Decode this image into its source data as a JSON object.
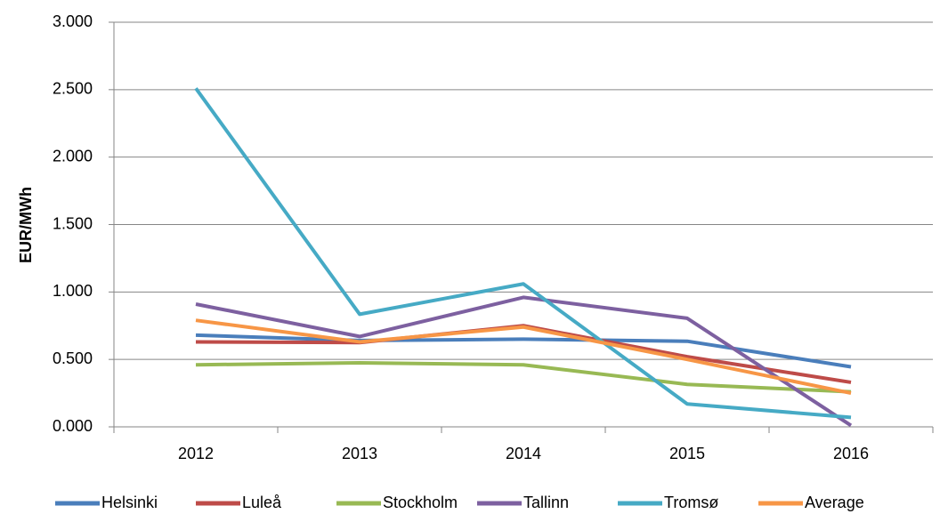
{
  "chart_data": {
    "type": "line",
    "y_label": "EUR/MWh",
    "categories": [
      "2012",
      "2013",
      "2014",
      "2015",
      "2016"
    ],
    "series": [
      {
        "name": "Helsinki",
        "color": "#4a7ebb",
        "values": [
          680,
          640,
          650,
          635,
          445
        ]
      },
      {
        "name": "Luleå",
        "color": "#be4b48",
        "values": [
          630,
          625,
          750,
          520,
          330
        ]
      },
      {
        "name": "Stockholm",
        "color": "#98b954",
        "values": [
          460,
          475,
          460,
          315,
          260
        ]
      },
      {
        "name": "Tallinn",
        "color": "#7d60a0",
        "values": [
          910,
          670,
          960,
          805,
          10
        ]
      },
      {
        "name": "Tromsø",
        "color": "#46aac5",
        "values": [
          2510,
          835,
          1060,
          170,
          70
        ]
      },
      {
        "name": "Average",
        "color": "#f79646",
        "values": [
          790,
          630,
          740,
          500,
          250
        ]
      }
    ],
    "ylim": [
      0,
      3000
    ],
    "yticks": [
      {
        "value": 0,
        "label": "0.000"
      },
      {
        "value": 500,
        "label": "0.500"
      },
      {
        "value": 1000,
        "label": "1.000"
      },
      {
        "value": 1500,
        "label": "1.500"
      },
      {
        "value": 2000,
        "label": "2.000"
      },
      {
        "value": 2500,
        "label": "2.500"
      },
      {
        "value": 3000,
        "label": "3.000"
      }
    ],
    "grid": true,
    "legend": "bottom"
  }
}
